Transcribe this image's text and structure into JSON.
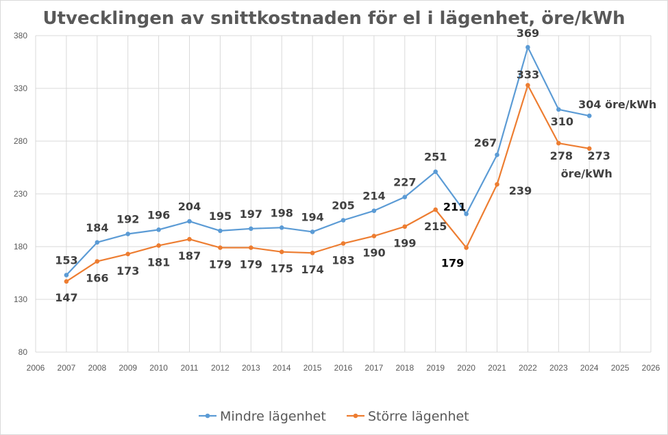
{
  "chart_data": {
    "type": "line",
    "title": "Utvecklingen av snittkostnaden för el i lägenhet, öre/kWh",
    "xlabel": "",
    "ylabel": "",
    "xlim": [
      2006,
      2026
    ],
    "ylim": [
      80,
      380
    ],
    "xticks": [
      2006,
      2007,
      2008,
      2009,
      2010,
      2011,
      2012,
      2013,
      2014,
      2015,
      2016,
      2017,
      2018,
      2019,
      2020,
      2021,
      2022,
      2023,
      2024,
      2025,
      2026
    ],
    "yticks": [
      80,
      130,
      180,
      230,
      280,
      330,
      380
    ],
    "grid": true,
    "legend": "bottom",
    "series": [
      {
        "name": "Mindre lägenhet",
        "color": "#5b9bd5",
        "x": [
          2007,
          2008,
          2009,
          2010,
          2011,
          2012,
          2013,
          2014,
          2015,
          2016,
          2017,
          2018,
          2019,
          2020,
          2021,
          2022,
          2023,
          2024
        ],
        "y": [
          153,
          184,
          192,
          196,
          204,
          195,
          197,
          198,
          194,
          205,
          214,
          227,
          251,
          211,
          267,
          369,
          310,
          304
        ],
        "labels": [
          "153",
          "184",
          "192",
          "196",
          "204",
          "195",
          "197",
          "198",
          "194",
          "205",
          "214",
          "227",
          "251",
          "211",
          "267",
          "369",
          "310",
          "304 öre/kWh"
        ]
      },
      {
        "name": "Större lägenhet",
        "color": "#ed7d31",
        "x": [
          2007,
          2008,
          2009,
          2010,
          2011,
          2012,
          2013,
          2014,
          2015,
          2016,
          2017,
          2018,
          2019,
          2020,
          2021,
          2022,
          2023,
          2024
        ],
        "y": [
          147,
          166,
          173,
          181,
          187,
          179,
          179,
          175,
          174,
          183,
          190,
          199,
          215,
          179,
          239,
          333,
          278,
          273
        ],
        "labels": [
          "147",
          "166",
          "173",
          "181",
          "187",
          "179",
          "179",
          "175",
          "174",
          "183",
          "190",
          "199",
          "215",
          "179",
          "239",
          "333",
          "278",
          "273"
        ],
        "extra_label": "öre/kWh"
      }
    ]
  }
}
